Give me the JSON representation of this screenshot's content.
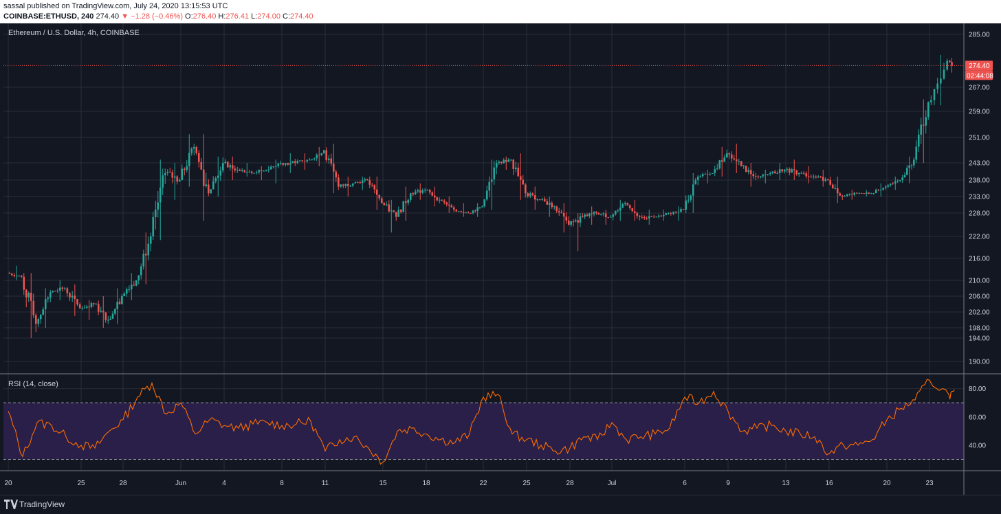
{
  "header": {
    "published": "sassal published on TradingView.com, July 24, 2020 13:15:53 UTC",
    "symbol": "COINBASE:ETHUSD, 240",
    "last": "274.40",
    "change": "▼ −1.28 (−0.46%)",
    "o_label": "O:",
    "o_value": "276.40",
    "h_label": "H:",
    "h_value": "276.41",
    "l_label": "L:",
    "l_value": "274.00",
    "c_label": "C:",
    "c_value": "274.40"
  },
  "colors": {
    "up": "#26a69a",
    "down": "#ef5350",
    "rsi": "#ff6d00",
    "rsi_band": "#2a1f48",
    "grid": "#363a45",
    "background": "#131722"
  },
  "footer": {
    "brand": "TradingView",
    "logo_icon": "tradingview-logo-icon"
  },
  "chart_data": {
    "type": "candlestick",
    "title": "Ethereum / U.S. Dollar, 4h, COINBASE",
    "price_axis": {
      "ticks": [
        190,
        194,
        198,
        202,
        206,
        210,
        216,
        222,
        228,
        233,
        238,
        243,
        251,
        259,
        267,
        285
      ],
      "tick_labels": [
        "190.00",
        "194.00",
        "198.00",
        "202.00",
        "206.00",
        "210.00",
        "216.00",
        "222.00",
        "228.00",
        "233.00",
        "238.00",
        "243.00",
        "251.00",
        "259.00",
        "267.00",
        "285.00"
      ],
      "last_price": 274.4,
      "last_price_label": "274.40",
      "countdown_label": "02:44:08"
    },
    "x_axis": {
      "ticks": [
        "20",
        "25",
        "28",
        "Jun",
        "4",
        "8",
        "11",
        "15",
        "18",
        "22",
        "25",
        "28",
        "Jul",
        "6",
        "9",
        "13",
        "16",
        "20",
        "23"
      ]
    },
    "anchors": [
      {
        "date": "May 20",
        "open": 212,
        "high": 214,
        "low": 210,
        "close": 211
      },
      {
        "date": "May 21",
        "open": 211,
        "high": 212,
        "low": 194,
        "close": 199
      },
      {
        "date": "May 22",
        "open": 199,
        "high": 208,
        "low": 198,
        "close": 207
      },
      {
        "date": "May 23",
        "open": 207,
        "high": 210,
        "low": 205,
        "close": 208
      },
      {
        "date": "May 24",
        "open": 208,
        "high": 209,
        "low": 201,
        "close": 203
      },
      {
        "date": "May 25",
        "open": 203,
        "high": 205,
        "low": 200,
        "close": 204
      },
      {
        "date": "May 26",
        "open": 204,
        "high": 206,
        "low": 198,
        "close": 200
      },
      {
        "date": "May 27",
        "open": 200,
        "high": 208,
        "low": 199,
        "close": 206
      },
      {
        "date": "May 28",
        "open": 206,
        "high": 212,
        "low": 205,
        "close": 210
      },
      {
        "date": "May 29",
        "open": 210,
        "high": 223,
        "low": 209,
        "close": 222
      },
      {
        "date": "May 30",
        "open": 222,
        "high": 244,
        "low": 221,
        "close": 240
      },
      {
        "date": "May 31",
        "open": 240,
        "high": 243,
        "low": 232,
        "close": 238
      },
      {
        "date": "Jun 1",
        "open": 238,
        "high": 252,
        "low": 236,
        "close": 248
      },
      {
        "date": "Jun 2",
        "open": 248,
        "high": 252,
        "low": 226,
        "close": 234
      },
      {
        "date": "Jun 3",
        "open": 234,
        "high": 245,
        "low": 233,
        "close": 243
      },
      {
        "date": "Jun 4",
        "open": 243,
        "high": 245,
        "low": 238,
        "close": 241
      },
      {
        "date": "Jun 5",
        "open": 241,
        "high": 243,
        "low": 239,
        "close": 240
      },
      {
        "date": "Jun 6",
        "open": 240,
        "high": 242,
        "low": 238,
        "close": 241
      },
      {
        "date": "Jun 7",
        "open": 241,
        "high": 244,
        "low": 237,
        "close": 243
      },
      {
        "date": "Jun 8",
        "open": 243,
        "high": 246,
        "low": 240,
        "close": 243
      },
      {
        "date": "Jun 9",
        "open": 243,
        "high": 246,
        "low": 241,
        "close": 244
      },
      {
        "date": "Jun 10",
        "open": 244,
        "high": 248,
        "low": 242,
        "close": 247
      },
      {
        "date": "Jun 11",
        "open": 247,
        "high": 249,
        "low": 234,
        "close": 236
      },
      {
        "date": "Jun 12",
        "open": 236,
        "high": 239,
        "low": 233,
        "close": 237
      },
      {
        "date": "Jun 13",
        "open": 237,
        "high": 239,
        "low": 235,
        "close": 238
      },
      {
        "date": "Jun 14",
        "open": 238,
        "high": 239,
        "low": 229,
        "close": 231
      },
      {
        "date": "Jun 15",
        "open": 231,
        "high": 232,
        "low": 223,
        "close": 227
      },
      {
        "date": "Jun 16",
        "open": 227,
        "high": 236,
        "low": 226,
        "close": 234
      },
      {
        "date": "Jun 17",
        "open": 234,
        "high": 237,
        "low": 232,
        "close": 235
      },
      {
        "date": "Jun 18",
        "open": 235,
        "high": 236,
        "low": 230,
        "close": 232
      },
      {
        "date": "Jun 19",
        "open": 232,
        "high": 233,
        "low": 228,
        "close": 229
      },
      {
        "date": "Jun 20",
        "open": 229,
        "high": 231,
        "low": 227,
        "close": 228
      },
      {
        "date": "Jun 21",
        "open": 228,
        "high": 231,
        "low": 227,
        "close": 230
      },
      {
        "date": "Jun 22",
        "open": 230,
        "high": 244,
        "low": 229,
        "close": 243
      },
      {
        "date": "Jun 23",
        "open": 243,
        "high": 245,
        "low": 241,
        "close": 244
      },
      {
        "date": "Jun 24",
        "open": 244,
        "high": 246,
        "low": 232,
        "close": 234
      },
      {
        "date": "Jun 25",
        "open": 234,
        "high": 236,
        "low": 229,
        "close": 232
      },
      {
        "date": "Jun 26",
        "open": 232,
        "high": 233,
        "low": 227,
        "close": 230
      },
      {
        "date": "Jun 27",
        "open": 230,
        "high": 231,
        "low": 223,
        "close": 225
      },
      {
        "date": "Jun 28",
        "open": 225,
        "high": 228,
        "low": 218,
        "close": 227
      },
      {
        "date": "Jun 29",
        "open": 227,
        "high": 230,
        "low": 225,
        "close": 228
      },
      {
        "date": "Jun 30",
        "open": 228,
        "high": 229,
        "low": 225,
        "close": 227
      },
      {
        "date": "Jul 1",
        "open": 227,
        "high": 232,
        "low": 226,
        "close": 231
      },
      {
        "date": "Jul 2",
        "open": 231,
        "high": 232,
        "low": 226,
        "close": 227
      },
      {
        "date": "Jul 3",
        "open": 227,
        "high": 229,
        "low": 225,
        "close": 227
      },
      {
        "date": "Jul 4",
        "open": 227,
        "high": 229,
        "low": 226,
        "close": 228
      },
      {
        "date": "Jul 5",
        "open": 228,
        "high": 230,
        "low": 226,
        "close": 229
      },
      {
        "date": "Jul 6",
        "open": 229,
        "high": 240,
        "low": 228,
        "close": 239
      },
      {
        "date": "Jul 7",
        "open": 239,
        "high": 241,
        "low": 237,
        "close": 240
      },
      {
        "date": "Jul 8",
        "open": 240,
        "high": 248,
        "low": 239,
        "close": 246
      },
      {
        "date": "Jul 9",
        "open": 246,
        "high": 249,
        "low": 240,
        "close": 242
      },
      {
        "date": "Jul 10",
        "open": 242,
        "high": 243,
        "low": 236,
        "close": 239
      },
      {
        "date": "Jul 11",
        "open": 239,
        "high": 241,
        "low": 237,
        "close": 240
      },
      {
        "date": "Jul 12",
        "open": 240,
        "high": 243,
        "low": 238,
        "close": 241
      },
      {
        "date": "Jul 13",
        "open": 241,
        "high": 244,
        "low": 238,
        "close": 240
      },
      {
        "date": "Jul 14",
        "open": 240,
        "high": 242,
        "low": 237,
        "close": 239
      },
      {
        "date": "Jul 15",
        "open": 239,
        "high": 241,
        "low": 236,
        "close": 238
      },
      {
        "date": "Jul 16",
        "open": 238,
        "high": 239,
        "low": 231,
        "close": 233
      },
      {
        "date": "Jul 17",
        "open": 233,
        "high": 235,
        "low": 232,
        "close": 234
      },
      {
        "date": "Jul 18",
        "open": 234,
        "high": 235,
        "low": 233,
        "close": 234
      },
      {
        "date": "Jul 19",
        "open": 234,
        "high": 237,
        "low": 233,
        "close": 236
      },
      {
        "date": "Jul 20",
        "open": 236,
        "high": 239,
        "low": 235,
        "close": 238
      },
      {
        "date": "Jul 21",
        "open": 238,
        "high": 245,
        "low": 237,
        "close": 244
      },
      {
        "date": "Jul 22",
        "open": 244,
        "high": 263,
        "low": 243,
        "close": 262
      },
      {
        "date": "Jul 23",
        "open": 262,
        "high": 278,
        "low": 261,
        "close": 276
      },
      {
        "date": "Jul 24",
        "open": 276,
        "high": 277,
        "low": 272,
        "close": 274.4
      }
    ],
    "rsi": {
      "label": "RSI (14, close)",
      "ticks": [
        40,
        60,
        80
      ],
      "tick_labels": [
        "40.00",
        "60.00",
        "80.00"
      ],
      "band": [
        30,
        70
      ],
      "ylim": [
        22,
        90
      ],
      "anchors": [
        {
          "date": "May 20",
          "value": 64
        },
        {
          "date": "May 21",
          "value": 32
        },
        {
          "date": "May 22",
          "value": 56
        },
        {
          "date": "May 23",
          "value": 54
        },
        {
          "date": "May 24",
          "value": 46
        },
        {
          "date": "May 25",
          "value": 40
        },
        {
          "date": "May 26",
          "value": 38
        },
        {
          "date": "May 27",
          "value": 50
        },
        {
          "date": "May 28",
          "value": 58
        },
        {
          "date": "May 29",
          "value": 74
        },
        {
          "date": "May 30",
          "value": 84
        },
        {
          "date": "May 31",
          "value": 62
        },
        {
          "date": "Jun 1",
          "value": 70
        },
        {
          "date": "Jun 2",
          "value": 48
        },
        {
          "date": "Jun 3",
          "value": 58
        },
        {
          "date": "Jun 4",
          "value": 54
        },
        {
          "date": "Jun 5",
          "value": 52
        },
        {
          "date": "Jun 6",
          "value": 55
        },
        {
          "date": "Jun 7",
          "value": 56
        },
        {
          "date": "Jun 8",
          "value": 54
        },
        {
          "date": "Jun 9",
          "value": 55
        },
        {
          "date": "Jun 10",
          "value": 57
        },
        {
          "date": "Jun 11",
          "value": 36
        },
        {
          "date": "Jun 12",
          "value": 44
        },
        {
          "date": "Jun 13",
          "value": 46
        },
        {
          "date": "Jun 14",
          "value": 38
        },
        {
          "date": "Jun 15",
          "value": 28
        },
        {
          "date": "Jun 16",
          "value": 50
        },
        {
          "date": "Jun 17",
          "value": 52
        },
        {
          "date": "Jun 18",
          "value": 48
        },
        {
          "date": "Jun 19",
          "value": 44
        },
        {
          "date": "Jun 20",
          "value": 42
        },
        {
          "date": "Jun 21",
          "value": 48
        },
        {
          "date": "Jun 22",
          "value": 74
        },
        {
          "date": "Jun 23",
          "value": 76
        },
        {
          "date": "Jun 24",
          "value": 48
        },
        {
          "date": "Jun 25",
          "value": 44
        },
        {
          "date": "Jun 26",
          "value": 40
        },
        {
          "date": "Jun 27",
          "value": 36
        },
        {
          "date": "Jun 28",
          "value": 38
        },
        {
          "date": "Jun 29",
          "value": 46
        },
        {
          "date": "Jun 30",
          "value": 44
        },
        {
          "date": "Jul 1",
          "value": 56
        },
        {
          "date": "Jul 2",
          "value": 44
        },
        {
          "date": "Jul 3",
          "value": 46
        },
        {
          "date": "Jul 4",
          "value": 48
        },
        {
          "date": "Jul 5",
          "value": 52
        },
        {
          "date": "Jul 6",
          "value": 74
        },
        {
          "date": "Jul 7",
          "value": 70
        },
        {
          "date": "Jul 8",
          "value": 78
        },
        {
          "date": "Jul 9",
          "value": 64
        },
        {
          "date": "Jul 10",
          "value": 50
        },
        {
          "date": "Jul 11",
          "value": 52
        },
        {
          "date": "Jul 12",
          "value": 54
        },
        {
          "date": "Jul 13",
          "value": 50
        },
        {
          "date": "Jul 14",
          "value": 48
        },
        {
          "date": "Jul 15",
          "value": 46
        },
        {
          "date": "Jul 16",
          "value": 34
        },
        {
          "date": "Jul 17",
          "value": 40
        },
        {
          "date": "Jul 18",
          "value": 40
        },
        {
          "date": "Jul 19",
          "value": 44
        },
        {
          "date": "Jul 20",
          "value": 58
        },
        {
          "date": "Jul 21",
          "value": 66
        },
        {
          "date": "Jul 22",
          "value": 72
        },
        {
          "date": "Jul 23",
          "value": 86
        },
        {
          "date": "Jul 24",
          "value": 76
        }
      ]
    }
  }
}
